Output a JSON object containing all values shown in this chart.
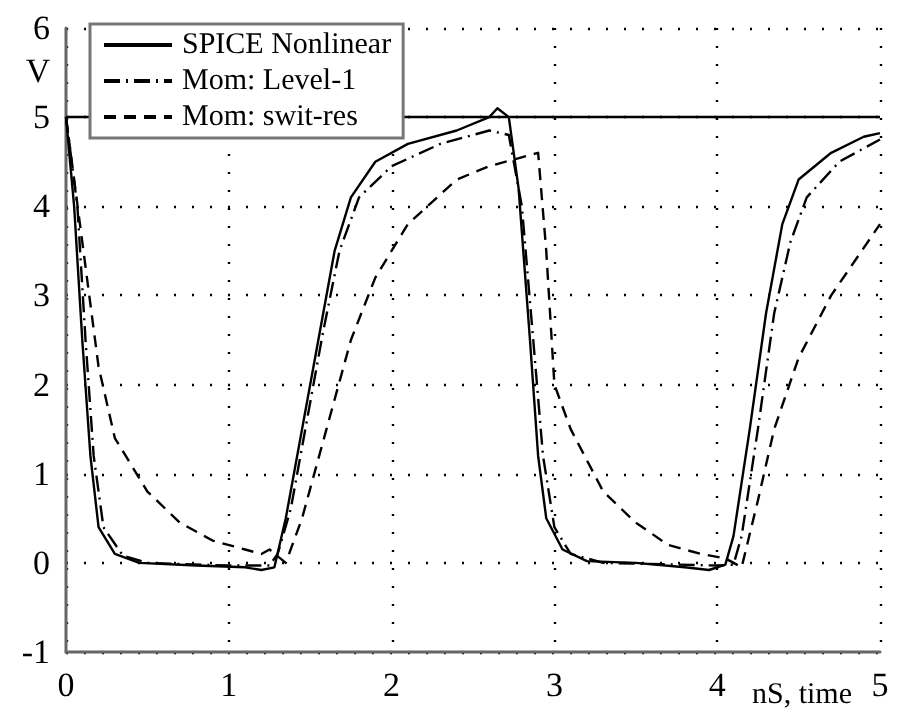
{
  "chart_data": {
    "type": "line",
    "xlabel": "nS, time",
    "ylabel": "V",
    "xlim": [
      0,
      5
    ],
    "xticks": [
      0,
      1,
      2,
      3,
      4,
      5
    ],
    "ylim": [
      -1,
      6
    ],
    "yticks": [
      -1,
      0,
      1,
      2,
      3,
      4,
      5,
      6
    ],
    "grid": true,
    "legend": "top left",
    "marker": "none",
    "ref_lines": [
      {
        "axis": "y",
        "value": 5,
        "color": "#000000",
        "line_style": "solid"
      }
    ],
    "series": [
      {
        "name": "SPICE Nonlinear",
        "color": "#000000",
        "line_style": "solid",
        "x": [
          0,
          0.05,
          0.1,
          0.15,
          0.2,
          0.3,
          0.45,
          0.8,
          1.1,
          1.2,
          1.28,
          1.35,
          1.45,
          1.55,
          1.65,
          1.75,
          1.9,
          2.1,
          2.4,
          2.6,
          2.65,
          2.72,
          2.78,
          2.85,
          2.9,
          2.95,
          3.05,
          3.2,
          3.5,
          3.8,
          3.95,
          4.05,
          4.1,
          4.2,
          4.3,
          4.4,
          4.5,
          4.7,
          4.9,
          5
        ],
        "values": [
          5,
          4,
          2.5,
          1.2,
          0.4,
          0.1,
          0,
          -0.03,
          -0.05,
          -0.08,
          -0.05,
          0.5,
          1.5,
          2.5,
          3.5,
          4.1,
          4.5,
          4.7,
          4.85,
          5,
          5.1,
          5,
          4.2,
          2.5,
          1.2,
          0.5,
          0.15,
          0.02,
          0,
          -0.05,
          -0.08,
          -0.02,
          0.3,
          1.5,
          2.8,
          3.8,
          4.3,
          4.6,
          4.78,
          4.82
        ]
      },
      {
        "name": "Mom: Level-1",
        "color": "#000000",
        "line_style": "dashdot",
        "x": [
          0,
          0.07,
          0.12,
          0.17,
          0.23,
          0.35,
          0.5,
          1,
          1.25,
          1.3,
          1.38,
          1.48,
          1.58,
          1.68,
          1.8,
          2,
          2.3,
          2.6,
          2.72,
          2.8,
          2.87,
          2.93,
          3,
          3.1,
          3.3,
          4,
          4.1,
          4.15,
          4.25,
          4.35,
          4.45,
          4.55,
          4.75,
          5
        ],
        "values": [
          5,
          4,
          2.5,
          1.2,
          0.4,
          0.08,
          0,
          -0.03,
          -0.03,
          0.1,
          0.6,
          1.6,
          2.6,
          3.5,
          4.1,
          4.45,
          4.7,
          4.85,
          4.8,
          4,
          2.5,
          1.2,
          0.4,
          0.1,
          0,
          -0.03,
          -0.02,
          0.3,
          1.5,
          2.8,
          3.6,
          4.1,
          4.5,
          4.75
        ]
      },
      {
        "name": "Mom: swit-res",
        "color": "#000000",
        "line_style": "dashed",
        "x": [
          0,
          0.1,
          0.2,
          0.3,
          0.5,
          0.7,
          0.9,
          1.1,
          1.2,
          1.25,
          1.35,
          1.45,
          1.6,
          1.75,
          1.9,
          2.1,
          2.4,
          2.6,
          2.9,
          2.95,
          3,
          3.1,
          3.3,
          3.5,
          3.7,
          3.9,
          4.05,
          4.15,
          4.25,
          4.35,
          4.5,
          4.7,
          5
        ],
        "values": [
          5,
          3.6,
          2.2,
          1.4,
          0.8,
          0.45,
          0.25,
          0.15,
          0.1,
          0.15,
          0,
          0.5,
          1.5,
          2.5,
          3.2,
          3.8,
          4.3,
          4.45,
          4.6,
          3.5,
          2,
          1.5,
          0.8,
          0.45,
          0.2,
          0.1,
          0.05,
          -0.05,
          0.7,
          1.5,
          2.3,
          3,
          3.8
        ]
      }
    ]
  }
}
